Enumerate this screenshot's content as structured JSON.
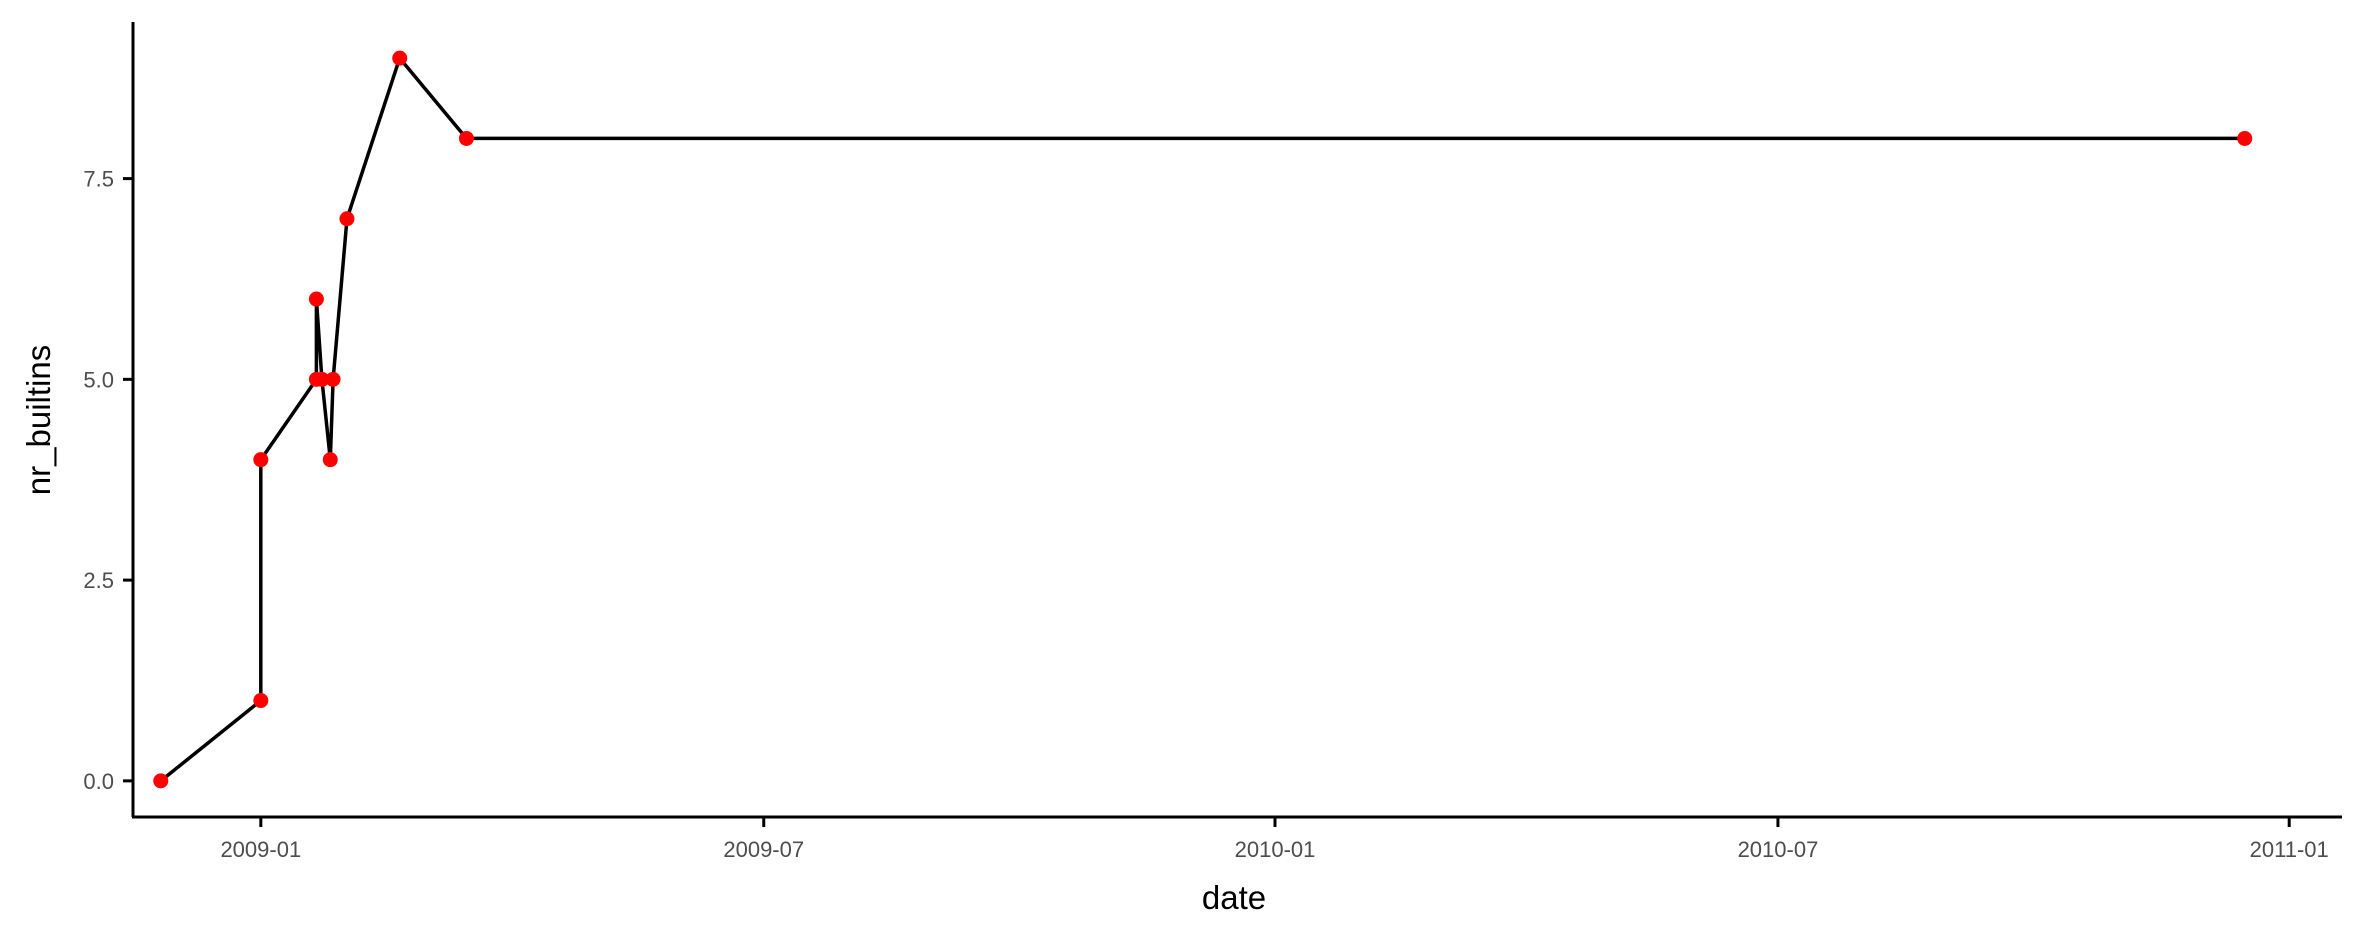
{
  "chart_data": {
    "type": "line",
    "title": "",
    "xlabel": "date",
    "ylabel": "nr_builtins",
    "x_ticks": [
      "2009-01",
      "2009-07",
      "2010-01",
      "2010-07",
      "2011-01"
    ],
    "y_ticks": [
      "0.0",
      "2.5",
      "5.0",
      "7.5"
    ],
    "xlim": [
      "2008-11-16",
      "2011-01-20"
    ],
    "ylim": [
      -0.45,
      9.45
    ],
    "grid": false,
    "legend": "none",
    "line_color": "#000000",
    "point_color": "#ff0000",
    "series": [
      {
        "x": [
          "2008-11-26",
          "2009-01-01",
          "2009-01-01",
          "2009-01-21",
          "2009-01-21",
          "2009-01-23",
          "2009-01-26",
          "2009-01-27",
          "2009-02-01",
          "2009-02-20",
          "2009-03-16",
          "2010-12-16"
        ],
        "y": [
          0,
          1,
          4,
          5,
          6,
          5,
          4,
          5,
          7,
          9,
          8,
          8
        ]
      }
    ]
  }
}
